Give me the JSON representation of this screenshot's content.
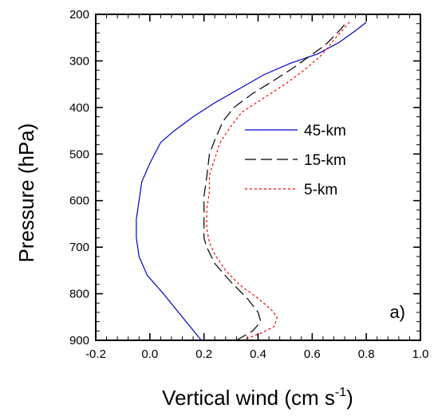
{
  "chart_data": {
    "type": "line",
    "title": "",
    "xlabel": "Vertical wind (cm s",
    "xlabel_sup": "-1",
    "xlabel_end": ")",
    "ylabel": "Pressure (hPa)",
    "xlim": [
      -0.2,
      1.0
    ],
    "ylim": [
      900,
      200
    ],
    "y_inverted": true,
    "x_ticks": [
      -0.2,
      0.0,
      0.2,
      0.4,
      0.6,
      0.8,
      1.0
    ],
    "x_tick_labels": [
      "-0.2",
      "0.0",
      "0.2",
      "0.4",
      "0.6",
      "0.8",
      "1.0"
    ],
    "y_ticks": [
      200,
      300,
      400,
      500,
      600,
      700,
      800,
      900
    ],
    "y_tick_labels": [
      "200",
      "300",
      "400",
      "500",
      "600",
      "700",
      "800",
      "900"
    ],
    "grid": false,
    "legend_position": "right",
    "panel_label": "a)",
    "series": [
      {
        "name": "45-km",
        "color": "#0000cc",
        "dash": "solid",
        "points": [
          [
            0.19,
            900
          ],
          [
            0.12,
            850
          ],
          [
            0.05,
            800
          ],
          [
            -0.01,
            760
          ],
          [
            -0.04,
            720
          ],
          [
            -0.05,
            680
          ],
          [
            -0.05,
            640
          ],
          [
            -0.04,
            600
          ],
          [
            -0.03,
            560
          ],
          [
            0.0,
            520
          ],
          [
            0.04,
            475
          ],
          [
            0.09,
            450
          ],
          [
            0.16,
            420
          ],
          [
            0.24,
            390
          ],
          [
            0.33,
            360
          ],
          [
            0.42,
            330
          ],
          [
            0.52,
            305
          ],
          [
            0.62,
            285
          ],
          [
            0.7,
            260
          ],
          [
            0.76,
            235
          ],
          [
            0.8,
            217
          ]
        ]
      },
      {
        "name": "15-km",
        "color": "#000000",
        "dash": "long-dash",
        "points": [
          [
            0.32,
            900
          ],
          [
            0.38,
            880
          ],
          [
            0.41,
            860
          ],
          [
            0.4,
            840
          ],
          [
            0.36,
            810
          ],
          [
            0.3,
            775
          ],
          [
            0.24,
            735
          ],
          [
            0.21,
            700
          ],
          [
            0.2,
            680
          ],
          [
            0.2,
            640
          ],
          [
            0.2,
            590
          ],
          [
            0.21,
            550
          ],
          [
            0.22,
            500
          ],
          [
            0.24,
            470
          ],
          [
            0.27,
            430
          ],
          [
            0.31,
            400
          ],
          [
            0.38,
            370
          ],
          [
            0.45,
            345
          ],
          [
            0.53,
            315
          ],
          [
            0.59,
            290
          ],
          [
            0.65,
            265
          ],
          [
            0.7,
            235
          ],
          [
            0.73,
            215
          ]
        ]
      },
      {
        "name": "5-km",
        "color": "#ff0000",
        "dash": "short-dash",
        "points": [
          [
            0.34,
            900
          ],
          [
            0.41,
            885
          ],
          [
            0.46,
            870
          ],
          [
            0.47,
            850
          ],
          [
            0.45,
            835
          ],
          [
            0.4,
            810
          ],
          [
            0.33,
            780
          ],
          [
            0.28,
            750
          ],
          [
            0.24,
            715
          ],
          [
            0.22,
            690
          ],
          [
            0.21,
            660
          ],
          [
            0.21,
            620
          ],
          [
            0.22,
            580
          ],
          [
            0.22,
            545
          ],
          [
            0.24,
            510
          ],
          [
            0.26,
            475
          ],
          [
            0.3,
            440
          ],
          [
            0.34,
            410
          ],
          [
            0.42,
            380
          ],
          [
            0.5,
            350
          ],
          [
            0.57,
            320
          ],
          [
            0.63,
            290
          ],
          [
            0.66,
            270
          ],
          [
            0.68,
            255
          ],
          [
            0.71,
            235
          ],
          [
            0.74,
            215
          ]
        ]
      }
    ]
  }
}
